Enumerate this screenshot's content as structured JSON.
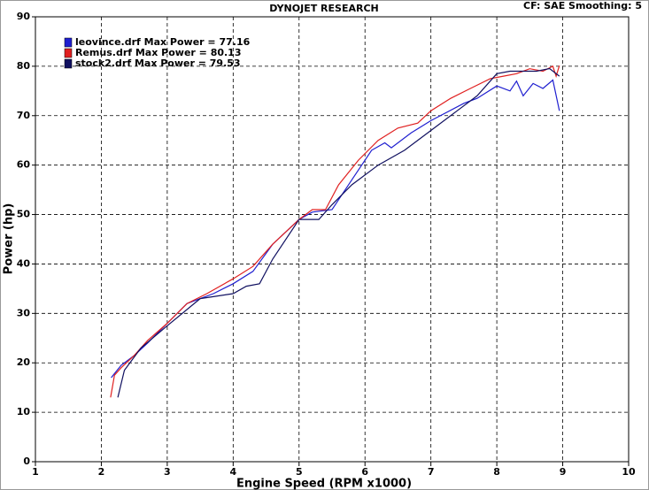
{
  "chart_data": {
    "type": "line",
    "title": "DYNOJET RESEARCH",
    "subtitle": "CF: SAE  Smoothing: 5",
    "x_label": "Engine Speed (RPM x1000)",
    "y_label": "Power (hp)",
    "xlim": [
      1,
      10
    ],
    "xticks": [
      1,
      2,
      3,
      4,
      5,
      6,
      7,
      8,
      9,
      10
    ],
    "ylim": [
      0,
      90
    ],
    "yticks": [
      0,
      10,
      20,
      30,
      40,
      50,
      60,
      70,
      80,
      90
    ],
    "grid": true,
    "legend": "top-left",
    "series": [
      {
        "name": "leovince.drf Max Power = 77.16",
        "color": "#1f1fd0",
        "x": [
          2.15,
          2.3,
          2.5,
          2.7,
          3.0,
          3.3,
          3.7,
          4.0,
          4.3,
          4.6,
          5.0,
          5.2,
          5.5,
          5.8,
          6.1,
          6.3,
          6.4,
          6.7,
          7.0,
          7.5,
          7.7,
          8.0,
          8.2,
          8.3,
          8.4,
          8.55,
          8.7,
          8.85,
          8.95
        ],
        "values": [
          17,
          19.5,
          21.5,
          24,
          28,
          32,
          34,
          36,
          38.5,
          44,
          49,
          50.5,
          51,
          57,
          63,
          64.5,
          63.5,
          66.5,
          69,
          72.5,
          73.5,
          76,
          75,
          77,
          74,
          76.5,
          75.5,
          77.2,
          71
        ]
      },
      {
        "name": "Remus.drf Max Power = 80.13",
        "color": "#e02020",
        "x": [
          2.14,
          2.2,
          2.3,
          2.5,
          2.7,
          3.0,
          3.3,
          3.6,
          4.0,
          4.3,
          4.6,
          5.0,
          5.2,
          5.4,
          5.6,
          5.9,
          6.2,
          6.5,
          6.8,
          7.0,
          7.3,
          7.6,
          7.9,
          8.1,
          8.3,
          8.5,
          8.7,
          8.85,
          8.9,
          8.95
        ],
        "values": [
          13,
          17.5,
          19,
          21.5,
          24.5,
          28,
          32,
          34,
          37,
          39.5,
          44,
          49,
          51,
          51,
          56,
          61,
          65,
          67.5,
          68.5,
          71,
          73.5,
          75.5,
          77.5,
          78,
          78.5,
          79.5,
          79,
          80,
          78,
          80.13
        ]
      },
      {
        "name": "stock2.drf Max Power = 79.53",
        "color": "#101060",
        "x": [
          2.25,
          2.35,
          2.6,
          3.0,
          3.5,
          4.0,
          4.2,
          4.4,
          4.6,
          5.0,
          5.3,
          5.5,
          5.8,
          6.2,
          6.6,
          7.0,
          7.4,
          7.7,
          8.0,
          8.2,
          8.4,
          8.6,
          8.8,
          8.95
        ],
        "values": [
          13,
          18.5,
          23,
          27.5,
          33,
          34,
          35.5,
          36,
          41,
          49,
          49,
          52,
          56,
          60,
          63,
          67,
          71,
          74,
          78.5,
          79,
          79,
          79,
          79.53,
          78
        ]
      }
    ]
  }
}
